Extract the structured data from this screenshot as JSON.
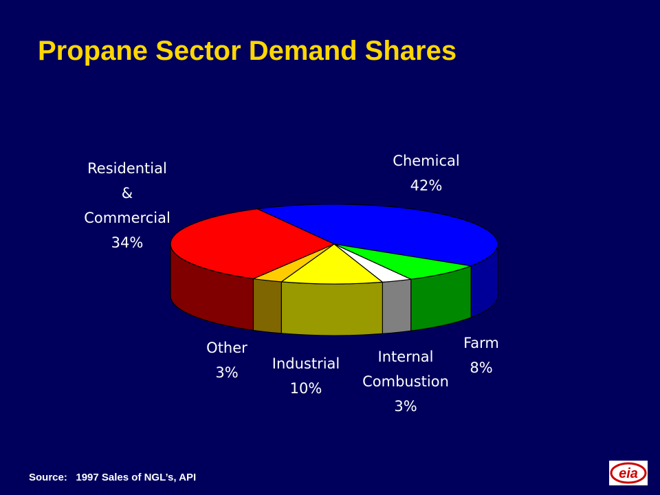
{
  "title": "Propane Sector Demand Shares",
  "source": {
    "prefix": "Source:",
    "text": "1997 Sales of NGL’s, API"
  },
  "logo": {
    "text": "eia",
    "icon": "eia-logo"
  },
  "chart_data": {
    "type": "pie",
    "title": "Propane Sector Demand Shares",
    "three_d": true,
    "slices": [
      {
        "label": [
          "Chemical"
        ],
        "value": 42,
        "pct": "42%",
        "color": "#0000ff",
        "side_color": "#000099"
      },
      {
        "label": [
          "Farm"
        ],
        "value": 8,
        "pct": "8%",
        "color": "#00ff00",
        "side_color": "#008800"
      },
      {
        "label": [
          "Internal",
          "Combustion"
        ],
        "value": 3,
        "pct": "3%",
        "color": "#ffffff",
        "side_color": "#808080"
      },
      {
        "label": [
          "Industrial"
        ],
        "value": 10,
        "pct": "10%",
        "color": "#ffff00",
        "side_color": "#999900"
      },
      {
        "label": [
          "Other"
        ],
        "value": 3,
        "pct": "3%",
        "color": "#ffcc00",
        "side_color": "#806600"
      },
      {
        "label": [
          "Residential",
          "&",
          "Commercial"
        ],
        "value": 34,
        "pct": "34%",
        "color": "#ff0000",
        "side_color": "#800000"
      }
    ]
  }
}
